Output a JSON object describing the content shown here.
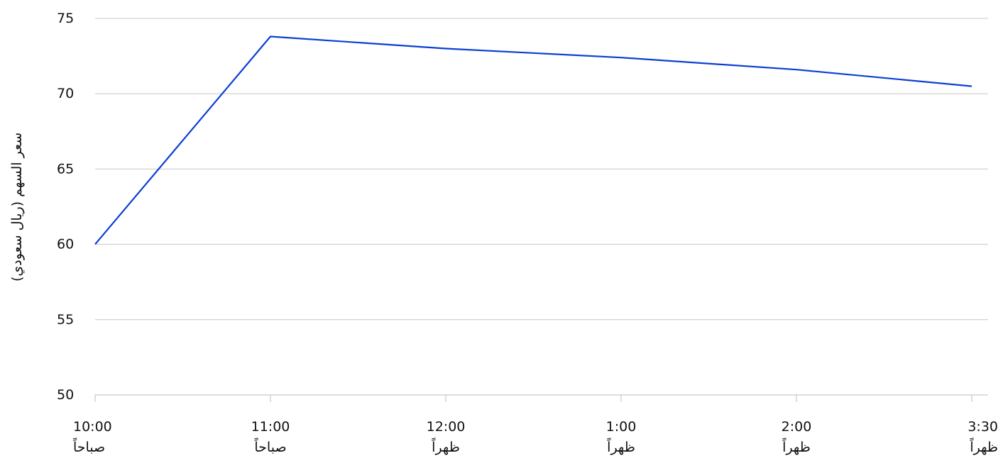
{
  "chart_data": {
    "type": "line",
    "title": "",
    "xlabel": "",
    "ylabel": "سعر السهم (ريال سعودي)",
    "categories": [
      {
        "time": "10:00",
        "period": "صباحاً"
      },
      {
        "time": "11:00",
        "period": "صباحاً"
      },
      {
        "time": "12:00",
        "period": "ظهراً"
      },
      {
        "time": "1:00",
        "period": "ظهراً"
      },
      {
        "time": "2:00",
        "period": "ظهراً"
      },
      {
        "time": "3:30",
        "period": "ظهراً"
      }
    ],
    "series": [
      {
        "values": [
          60.0,
          73.8,
          73.0,
          72.4,
          71.6,
          70.5
        ],
        "color": "#0b3fd4"
      }
    ],
    "yticks": [
      50,
      55,
      60,
      65,
      70,
      75
    ],
    "ylim": [
      50,
      75
    ],
    "grid": "horizontal"
  }
}
